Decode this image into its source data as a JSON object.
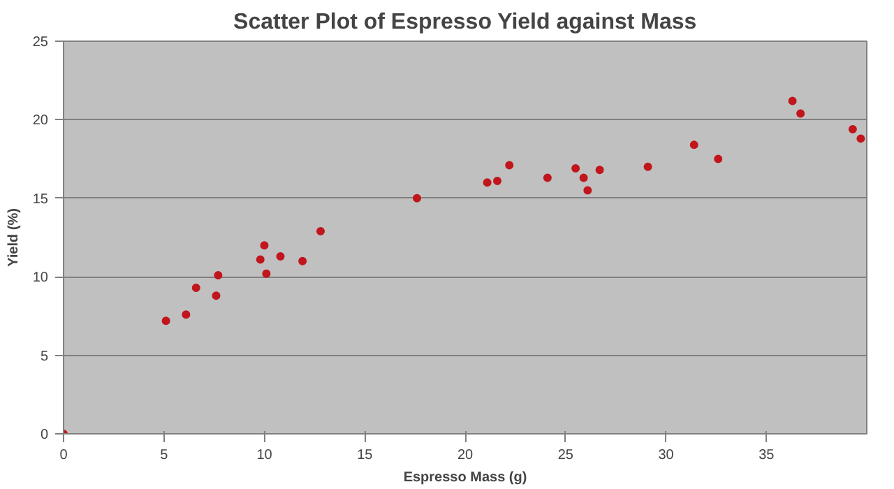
{
  "chart_data": {
    "type": "scatter",
    "title": "Scatter Plot of Espresso Yield against Mass",
    "xlabel": "Espresso Mass (g)",
    "ylabel": "Yield (%)",
    "xlim": [
      0,
      40
    ],
    "xticks": [
      0,
      5,
      10,
      15,
      20,
      25,
      30,
      35
    ],
    "ylim": [
      0,
      25
    ],
    "yticks": [
      0,
      5,
      10,
      15,
      20,
      25
    ],
    "grid": "y",
    "marker": "circle",
    "series": [
      {
        "color": "#c0161c",
        "x": [
          0,
          5.1,
          6.1,
          6.6,
          7.6,
          7.7,
          9.8,
          10.0,
          10.1,
          10.8,
          11.9,
          12.8,
          17.6,
          21.1,
          21.6,
          22.2,
          24.1,
          25.5,
          25.9,
          26.1,
          26.7,
          29.1,
          31.4,
          32.6,
          36.3,
          36.7,
          39.3,
          39.7
        ],
        "values": [
          0,
          7.2,
          7.6,
          9.3,
          8.8,
          10.1,
          11.1,
          12.0,
          10.2,
          11.3,
          11.0,
          12.9,
          15.0,
          16.0,
          16.1,
          17.1,
          16.3,
          16.9,
          16.3,
          15.5,
          16.8,
          17.0,
          18.4,
          17.5,
          21.2,
          20.4,
          19.4,
          18.8
        ]
      }
    ]
  }
}
